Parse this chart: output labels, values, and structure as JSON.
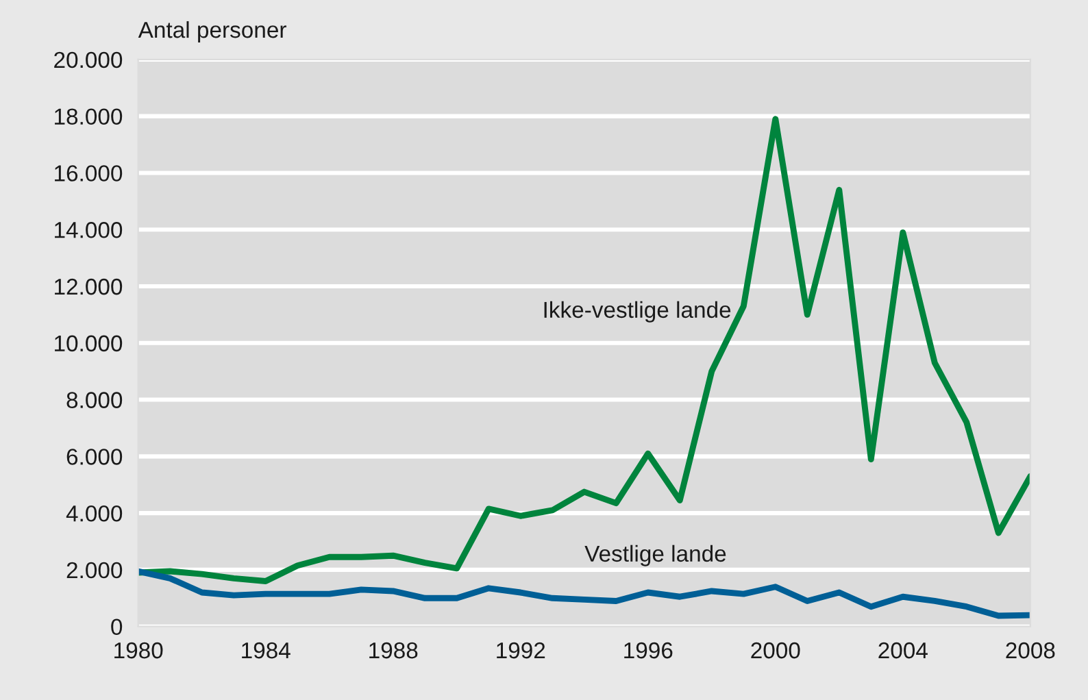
{
  "chart_data": {
    "type": "line",
    "ylabel": "Antal personer",
    "x": [
      1980,
      1981,
      1982,
      1983,
      1984,
      1985,
      1986,
      1987,
      1988,
      1989,
      1990,
      1991,
      1992,
      1993,
      1994,
      1995,
      1996,
      1997,
      1998,
      1999,
      2000,
      2001,
      2002,
      2003,
      2004,
      2005,
      2006,
      2007,
      2008
    ],
    "series": [
      {
        "name": "Ikke-vestlige lande",
        "color": "#00843d",
        "values": [
          1900,
          1950,
          1850,
          1700,
          1600,
          2150,
          2450,
          2450,
          2500,
          2250,
          2050,
          4150,
          3900,
          4100,
          4750,
          4350,
          6100,
          4450,
          9000,
          11300,
          17900,
          11000,
          15400,
          5900,
          13900,
          9300,
          7200,
          3300,
          5300
        ]
      },
      {
        "name": "Vestlige lande",
        "color": "#005f96",
        "values": [
          1950,
          1700,
          1200,
          1100,
          1150,
          1150,
          1150,
          1300,
          1250,
          1000,
          1000,
          1350,
          1200,
          1000,
          950,
          900,
          1200,
          1050,
          1250,
          1150,
          1400,
          900,
          1200,
          700,
          1050,
          900,
          700,
          380,
          400
        ]
      }
    ],
    "xlim": [
      1980,
      2008
    ],
    "xticks": [
      1980,
      1984,
      1988,
      1992,
      1996,
      2000,
      2004,
      2008
    ],
    "ylim": [
      0,
      20000
    ],
    "yticks": [
      0,
      {
        "value": 2000,
        "label": "2.000"
      },
      {
        "value": 4000,
        "label": "4.000"
      },
      {
        "value": 6000,
        "label": "6.000"
      },
      {
        "value": 8000,
        "label": "8.000"
      },
      {
        "value": 10000,
        "label": "10.000"
      },
      {
        "value": 12000,
        "label": "12.000"
      },
      {
        "value": 14000,
        "label": "14.000"
      },
      {
        "value": 16000,
        "label": "16.000"
      },
      {
        "value": 18000,
        "label": "18.000"
      },
      {
        "value": 20000,
        "label": "20.000"
      }
    ],
    "grid": "y",
    "legend": false,
    "marker": "none",
    "line_style": "solid"
  }
}
